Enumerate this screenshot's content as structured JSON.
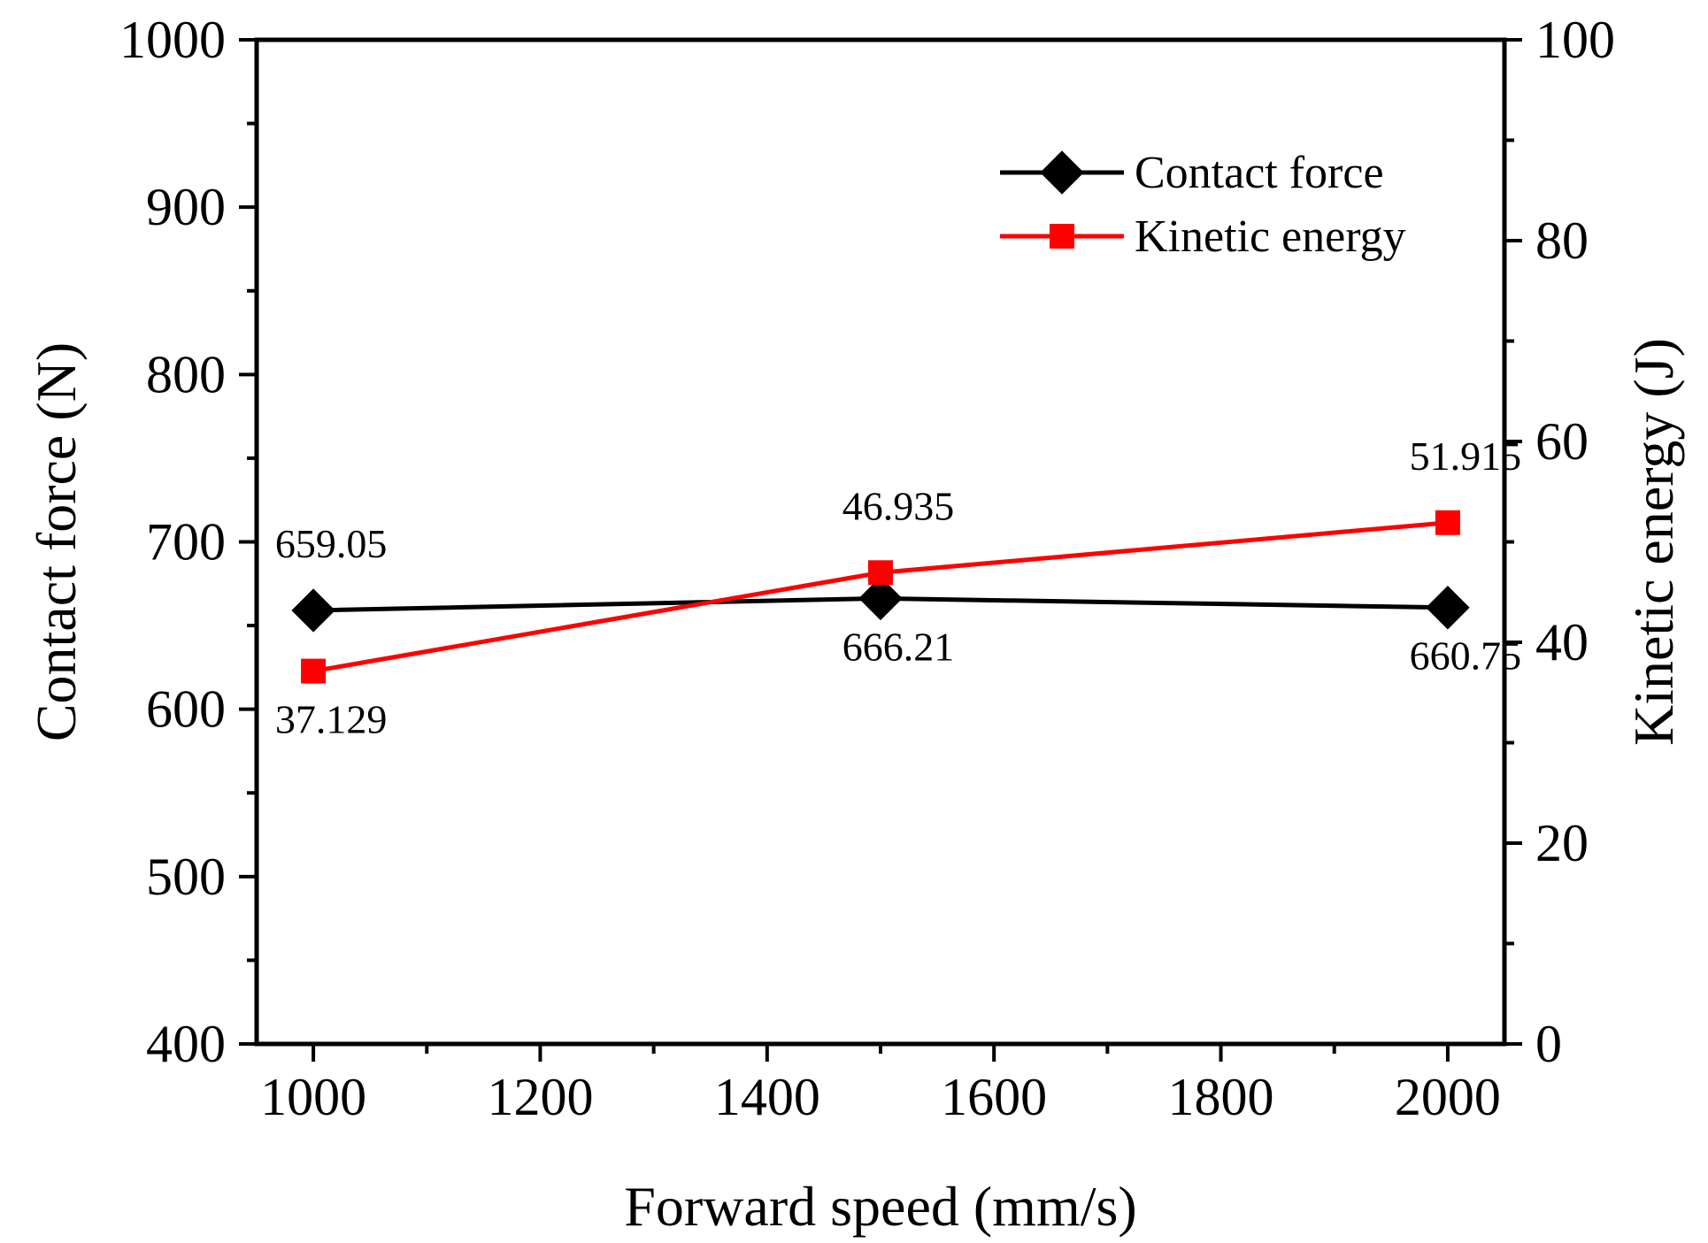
{
  "chart_data": {
    "type": "line",
    "title": "",
    "xlabel": "Forward speed (mm/s)",
    "ylabel": "Contact force (N)",
    "y2label": "Kinetic energy (J)",
    "x": [
      1000,
      1500,
      2000
    ],
    "xlim": [
      950,
      2050
    ],
    "xticks": [
      1000,
      1200,
      1400,
      1600,
      1800,
      2000
    ],
    "ylim": [
      400,
      1000
    ],
    "yticks": [
      400,
      500,
      600,
      700,
      800,
      900,
      1000
    ],
    "y2lim": [
      0,
      100
    ],
    "y2ticks": [
      0,
      20,
      40,
      60,
      80,
      100
    ],
    "grid": false,
    "legend_position": "top-right",
    "series": [
      {
        "name": "Contact force",
        "axis": "left",
        "color": "#000000",
        "marker": "diamond",
        "values": [
          659.05,
          666.21,
          660.75
        ],
        "labels": [
          "659.05",
          "666.21",
          "660.75"
        ],
        "label_side": [
          "above",
          "below",
          "below"
        ]
      },
      {
        "name": "Kinetic energy",
        "axis": "right",
        "color": "#ff0000",
        "marker": "square",
        "values": [
          37.129,
          46.935,
          51.915
        ],
        "labels": [
          "37.129",
          "46.935",
          "51.915"
        ],
        "label_side": [
          "below",
          "above",
          "above"
        ]
      }
    ]
  }
}
